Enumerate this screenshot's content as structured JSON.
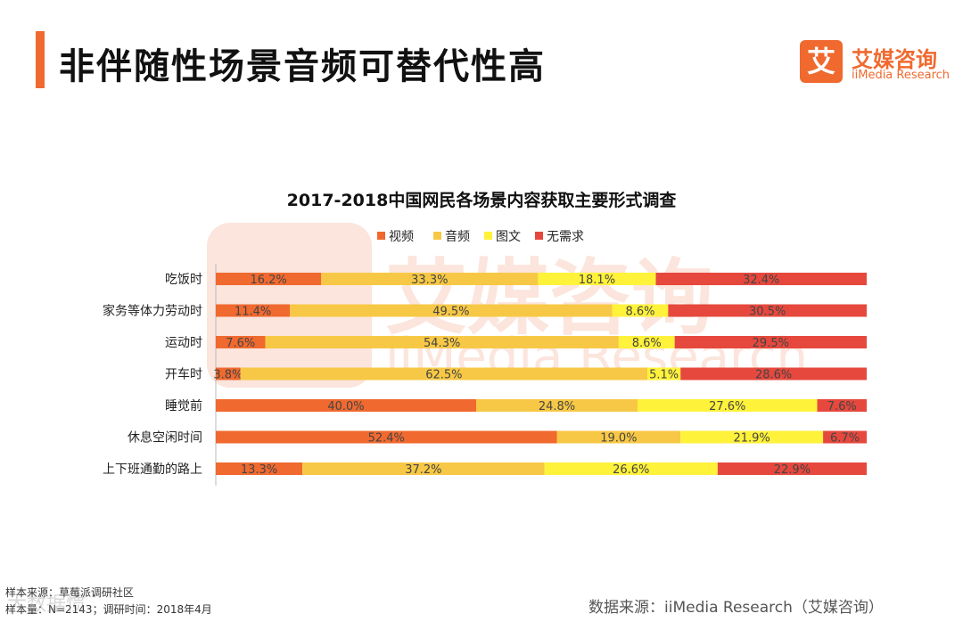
{
  "header": {
    "title": "非伴随性场景音频可替代性高",
    "logo_mark": "艾",
    "logo_cn": "艾媒咨询",
    "logo_en": "iiMedia Research"
  },
  "colors": {
    "accent": "#f0692f",
    "video": "#f0692f",
    "audio": "#f7c845",
    "graphic": "#fff23a",
    "none": "#e6483d"
  },
  "chart_data": {
    "type": "bar",
    "orientation": "horizontal",
    "stacked": true,
    "normalized": true,
    "title": "2017-2018中国网民各场景内容获取主要形式调查",
    "legend_position": "top",
    "categories": [
      "吃饭时",
      "家务等体力劳动时",
      "运动时",
      "开车时",
      "睡觉前",
      "休息空闲时间",
      "上下班通勤的路上"
    ],
    "series": [
      {
        "name": "视频",
        "color": "#f0692f",
        "values": [
          16.2,
          11.4,
          7.6,
          3.8,
          40.0,
          52.4,
          13.3
        ],
        "labels": [
          "16.2%",
          "11.4%",
          "7.6%",
          "3.8%",
          "40.0%",
          "52.4%",
          "13.3%"
        ]
      },
      {
        "name": "音频",
        "color": "#f7c845",
        "values": [
          33.3,
          49.5,
          54.3,
          62.5,
          24.8,
          19.0,
          37.2
        ],
        "labels": [
          "33.3%",
          "49.5%",
          "54.3%",
          "62.5%",
          "24.8%",
          "19.0%",
          "37.2%"
        ]
      },
      {
        "name": "图文",
        "color": "#fff23a",
        "values": [
          18.1,
          8.6,
          8.6,
          5.1,
          27.6,
          21.9,
          26.6
        ],
        "labels": [
          "18.1%",
          "8.6%",
          "8.6%",
          "5.1%",
          "27.6%",
          "21.9%",
          "26.6%"
        ]
      },
      {
        "name": "无需求",
        "color": "#e6483d",
        "values": [
          32.4,
          30.5,
          29.5,
          28.6,
          7.6,
          6.7,
          22.9
        ],
        "labels": [
          "32.4%",
          "30.5%",
          "29.5%",
          "28.6%",
          "7.6%",
          "6.7%",
          "22.9%"
        ]
      }
    ],
    "xlim": [
      0,
      100
    ]
  },
  "watermark": {
    "mark": "艾",
    "cn": "艾媒咨询",
    "en": "iiMedia Research",
    "corner": "大数据惯"
  },
  "footer": {
    "sample_source": "样本来源：草莓派调研社区",
    "sample_size": "样本量：N=2143；调研时间：2018年4月",
    "data_source": "数据来源：iiMedia Research（艾媒咨询）"
  }
}
